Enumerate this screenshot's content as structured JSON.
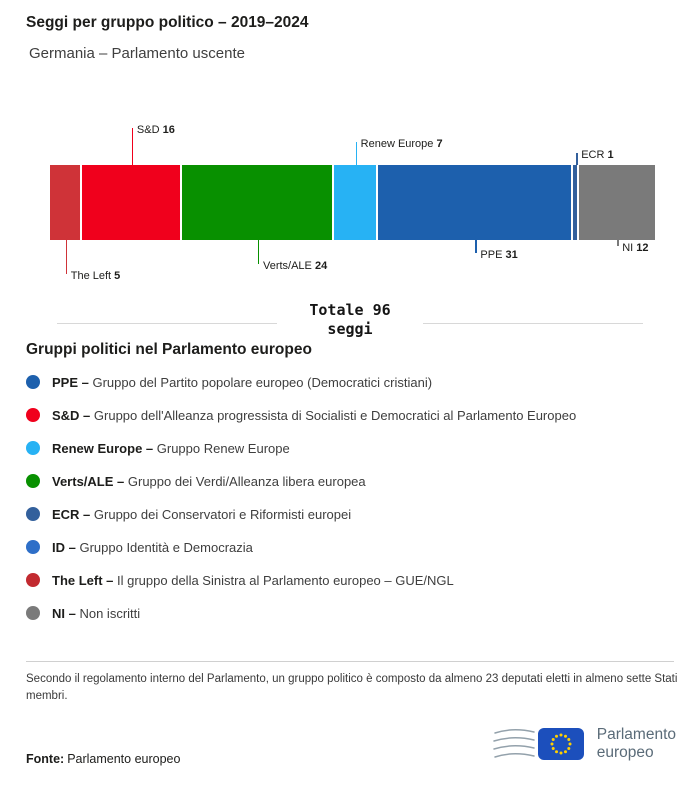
{
  "header": {
    "title": "Seggi per gruppo politico – 2019–2024",
    "subtitle": "Germania – Parlamento uscente"
  },
  "chart_data": {
    "type": "bar",
    "variant": "horizontal-stacked",
    "title": "Seggi per gruppo politico – 2019–2024",
    "subtitle": "Germania – Parlamento uscente",
    "total": 96,
    "total_label": "Totale 96",
    "total_sublabel": "seggi",
    "segments": [
      {
        "name": "The Left",
        "value": 5,
        "color": "#cf3338",
        "label_side": "bottom"
      },
      {
        "name": "S&D",
        "value": 16,
        "color": "#f0001c",
        "label_side": "top"
      },
      {
        "name": "Verts/ALE",
        "value": 24,
        "color": "#089000",
        "label_side": "bottom"
      },
      {
        "name": "Renew Europe",
        "value": 7,
        "color": "#27b2f4",
        "label_side": "top"
      },
      {
        "name": "PPE",
        "value": 31,
        "color": "#1d60ad",
        "label_side": "bottom"
      },
      {
        "name": "ECR",
        "value": 1,
        "color": "#33609c",
        "label_side": "top"
      },
      {
        "name": "NI",
        "value": 12,
        "color": "#7a7a7a",
        "label_side": "bottom"
      }
    ]
  },
  "legend": {
    "heading": "Gruppi politici nel Parlamento europeo",
    "items": [
      {
        "abbr": "PPE –",
        "desc": "Gruppo del Partito popolare europeo (Democratici cristiani)",
        "color": "#1d60ad"
      },
      {
        "abbr": "S&D –",
        "desc": "Gruppo dell'Alleanza progressista di Socialisti e Democratici al Parlamento Europeo",
        "color": "#f0001c"
      },
      {
        "abbr": "Renew Europe –",
        "desc": "Gruppo Renew Europe",
        "color": "#27b2f4"
      },
      {
        "abbr": "Verts/ALE –",
        "desc": "Gruppo dei Verdi/Alleanza libera europea",
        "color": "#089000"
      },
      {
        "abbr": "ECR –",
        "desc": "Gruppo dei Conservatori e Riformisti europei",
        "color": "#33609c"
      },
      {
        "abbr": "ID –",
        "desc": "Gruppo Identità e Democrazia",
        "color": "#2e6fc8"
      },
      {
        "abbr": "The Left –",
        "desc": "Il gruppo della Sinistra al Parlamento europeo – GUE/NGL",
        "color": "#c22a30"
      },
      {
        "abbr": "NI –",
        "desc": "Non iscritti",
        "color": "#7a7a7a"
      }
    ]
  },
  "footnote": "Secondo il regolamento interno del Parlamento, un gruppo politico è composto da almeno 23 deputati eletti in almeno sette Stati membri.",
  "footer": {
    "source_label": "Fonte:",
    "source_value": "Parlamento europeo",
    "logo_text_line1": "Parlamento",
    "logo_text_line2": "europeo"
  }
}
